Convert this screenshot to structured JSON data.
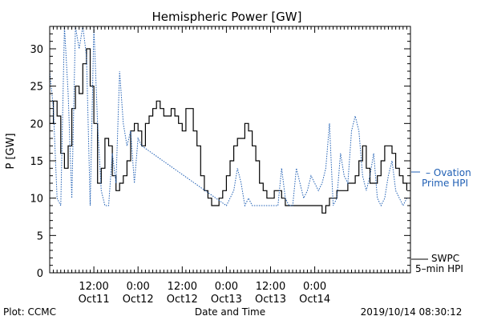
{
  "chart_data": {
    "type": "line",
    "title": "Hemispheric Power [GW]",
    "ylabel": "P [GW]",
    "xlabel": "Date and Time",
    "ylim": [
      0,
      33
    ],
    "xlim": [
      0,
      98
    ],
    "yticks": [
      0,
      5,
      10,
      15,
      20,
      25,
      30
    ],
    "xticks": [
      {
        "x": 12,
        "label": "12:00",
        "date": "Oct11"
      },
      {
        "x": 24,
        "label": "0:00",
        "date": "Oct12"
      },
      {
        "x": 36,
        "label": "12:00",
        "date": "Oct12"
      },
      {
        "x": 48,
        "label": "0:00",
        "date": "Oct13"
      },
      {
        "x": 60,
        "label": "12:00",
        "date": "Oct13"
      },
      {
        "x": 72,
        "label": "0:00",
        "date": "Oct14"
      }
    ],
    "series": [
      {
        "name": "SWPC 5–min HPI",
        "color": "#000000",
        "style": "solid",
        "x": [
          0,
          1,
          2,
          3,
          4,
          5,
          6,
          7,
          8,
          9,
          10,
          11,
          12,
          13,
          14,
          15,
          16,
          17,
          18,
          19,
          20,
          21,
          22,
          23,
          24,
          25,
          26,
          27,
          28,
          29,
          30,
          31,
          32,
          33,
          34,
          35,
          36,
          37,
          38,
          39,
          40,
          41,
          42,
          43,
          44,
          45,
          46,
          47,
          48,
          49,
          50,
          51,
          52,
          53,
          54,
          55,
          56,
          57,
          58,
          59,
          60,
          61,
          62,
          63,
          64,
          65,
          66,
          67,
          68,
          69,
          70,
          71,
          72,
          73,
          74,
          75,
          76,
          77,
          78,
          79,
          80,
          81,
          82,
          83,
          84,
          85,
          86,
          87,
          88,
          89,
          90,
          91,
          92,
          93,
          94,
          95,
          96,
          97
        ],
        "y": [
          20,
          23,
          21,
          16,
          14,
          17,
          22,
          25,
          24,
          28,
          30,
          25,
          20,
          12,
          14,
          18,
          17,
          13,
          11,
          12,
          13,
          15,
          19,
          20,
          19,
          17,
          20,
          21,
          22,
          23,
          22,
          21,
          21,
          22,
          21,
          20,
          19,
          22,
          22,
          19,
          17,
          13,
          11,
          10,
          9,
          9,
          10,
          11,
          13,
          15,
          17,
          18,
          18,
          20,
          19,
          17,
          15,
          12,
          11,
          10,
          10,
          11,
          11,
          10,
          9,
          9,
          9,
          9,
          9,
          9,
          9,
          9,
          9,
          9,
          8,
          9,
          10,
          10,
          11,
          11,
          11,
          12,
          12,
          13,
          15,
          17,
          14,
          12,
          12,
          13,
          15,
          17,
          17,
          16,
          14,
          13,
          12,
          11
        ]
      },
      {
        "name": "Ovation Prime HPI",
        "color": "#1f5fb4",
        "style": "dotted",
        "x": [
          0,
          1,
          2,
          3,
          4,
          5,
          6,
          7,
          8,
          9,
          10,
          11,
          12,
          13,
          14,
          15,
          16,
          17,
          18,
          19,
          20,
          21,
          22,
          23,
          24,
          25,
          48,
          49,
          50,
          51,
          52,
          53,
          54,
          55,
          56,
          57,
          58,
          59,
          60,
          61,
          62,
          63,
          64,
          65,
          66,
          67,
          68,
          69,
          70,
          71,
          72,
          73,
          74,
          75,
          76,
          77,
          78,
          79,
          80,
          81,
          82,
          83,
          84,
          85,
          86,
          87,
          88,
          89,
          90,
          91,
          92,
          93,
          94,
          95,
          96,
          97
        ],
        "y": [
          27,
          22,
          10,
          9,
          33,
          24,
          10,
          33,
          30,
          33,
          29,
          9,
          33,
          20,
          11,
          9,
          9,
          16,
          12,
          27,
          20,
          17,
          19,
          12,
          18,
          17,
          9,
          10,
          11,
          14,
          12,
          9,
          10,
          9,
          9,
          9,
          9,
          9,
          9,
          9,
          9,
          14,
          10,
          9,
          9,
          14,
          12,
          10,
          11,
          13,
          12,
          11,
          12,
          14,
          20,
          9,
          10,
          16,
          13,
          12,
          19,
          21,
          19,
          13,
          11,
          13,
          16,
          10,
          9,
          10,
          13,
          15,
          11,
          10,
          9,
          10
        ]
      }
    ]
  },
  "legend": {
    "swpc_line1": "SWPC",
    "swpc_line2": "5–min HPI",
    "ovation_line1": "– Ovation",
    "ovation_line2": "Prime HPI"
  },
  "footer": {
    "left": "Plot: CCMC",
    "center": "Date and Time",
    "right": "2019/10/14 08:30:12"
  },
  "colors": {
    "axis": "#000000",
    "ovation": "#1f5fb4"
  }
}
